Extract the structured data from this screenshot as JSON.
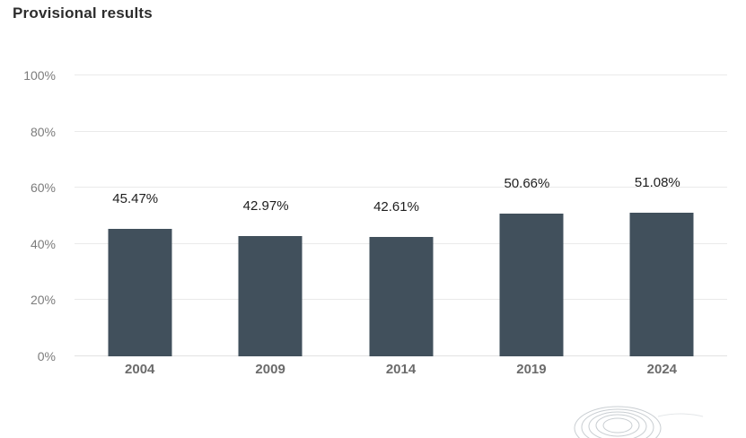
{
  "title": "Provisional results",
  "colors": {
    "bar": "#41505c",
    "gridline": "#eaeaea",
    "baseline": "#e2e2e2",
    "title_text": "#2d2d2d",
    "y_tick_text": "#7c7c7c",
    "year_text": "#6b6b6b",
    "data_label_text": "#1e1e1e",
    "logo_stroke": "#c9ced2"
  },
  "icons": {
    "footer_logo": "european-parliament-hemicycle-logo"
  },
  "chart_data": {
    "type": "bar",
    "title": "Provisional results",
    "categories": [
      "2004",
      "2009",
      "2014",
      "2019",
      "2024"
    ],
    "values": [
      45.47,
      42.97,
      42.61,
      50.66,
      51.08
    ],
    "value_labels": [
      "45.47%",
      "42.97%",
      "42.61%",
      "50.66%",
      "51.08%"
    ],
    "xlabel": "",
    "ylabel": "",
    "ylim": [
      0,
      100
    ],
    "yticks": [
      {
        "label": "0%",
        "value": 0
      },
      {
        "label": "20%",
        "value": 20
      },
      {
        "label": "40%",
        "value": 40
      },
      {
        "label": "60%",
        "value": 60
      },
      {
        "label": "80%",
        "value": 80
      },
      {
        "label": "100%",
        "value": 100
      }
    ],
    "grid": "horizontal-only",
    "legend": "none",
    "bar_color": "#41505c"
  }
}
